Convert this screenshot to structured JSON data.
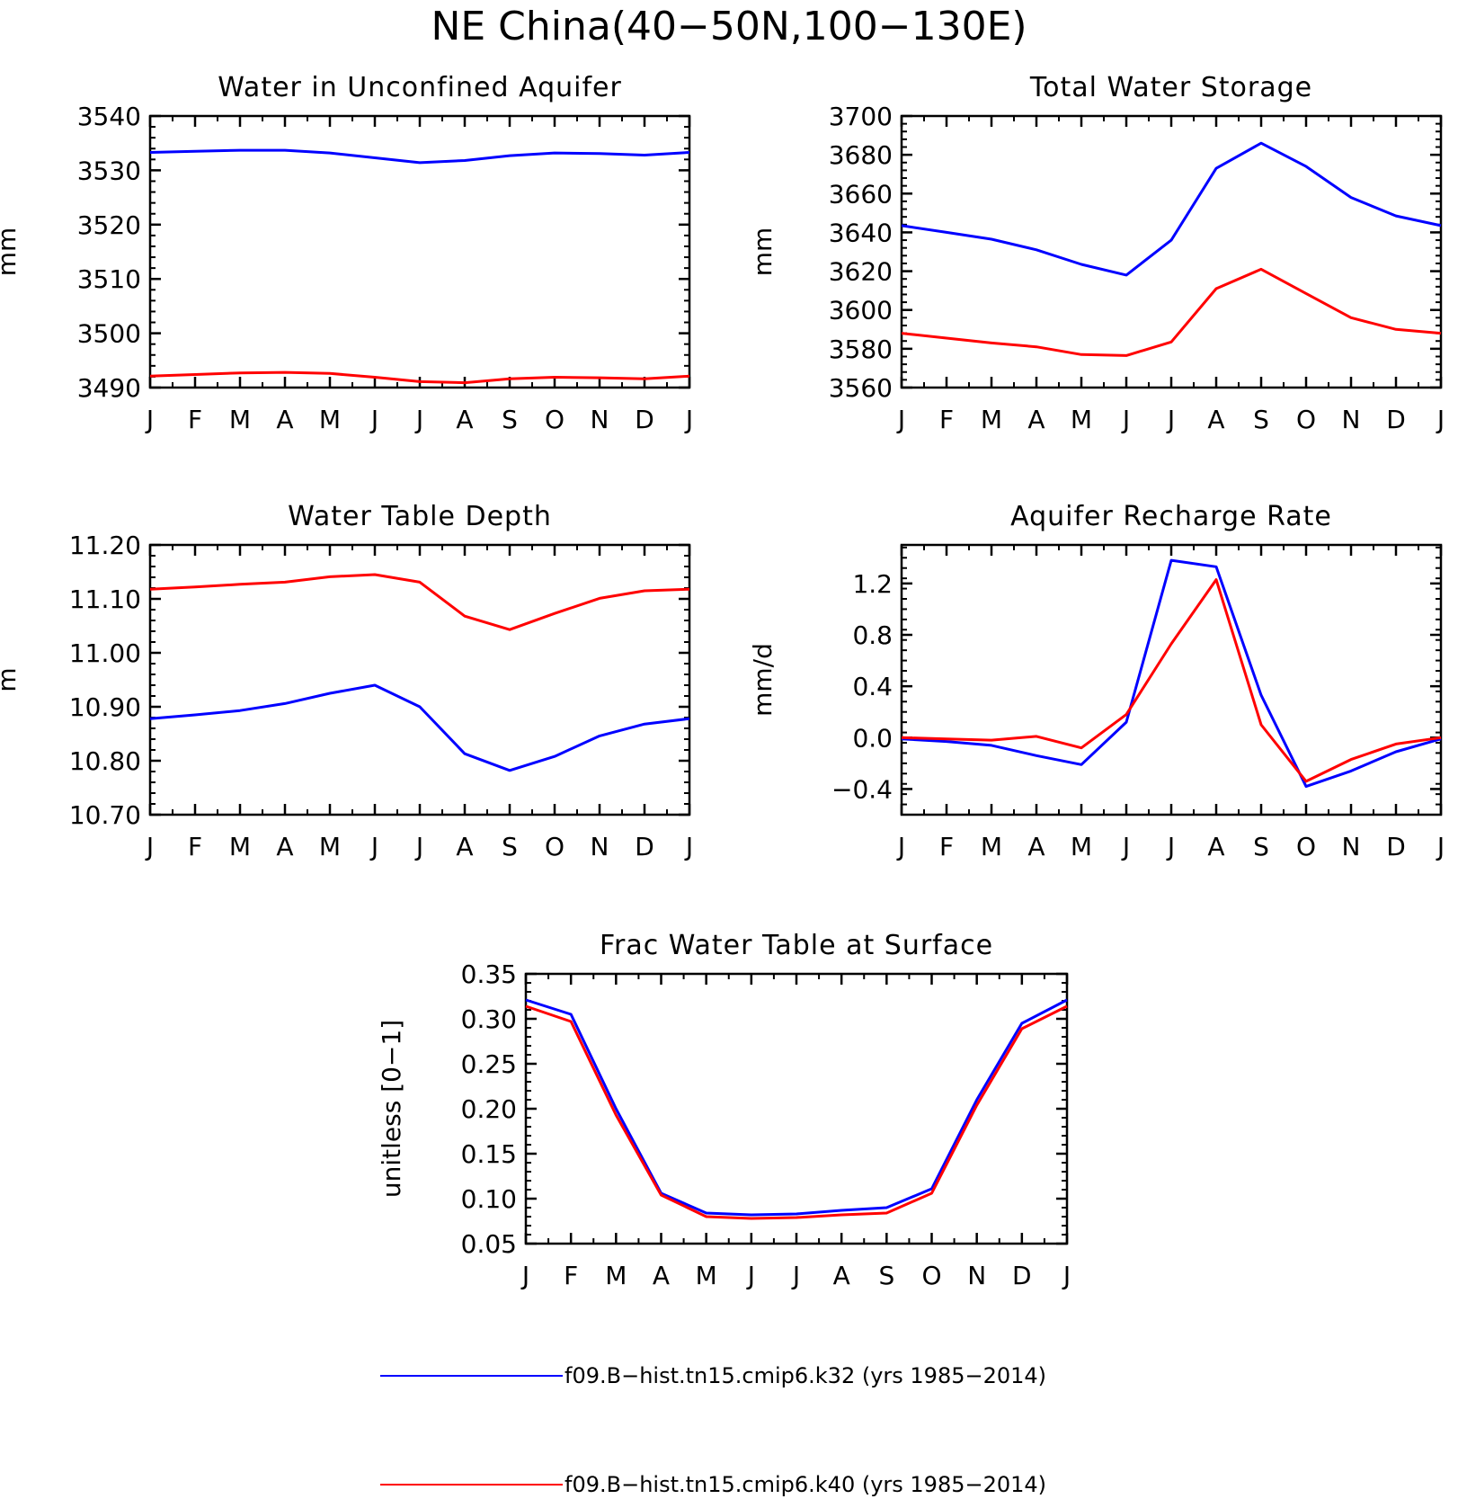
{
  "figure": {
    "title": "NE China(40−50N,100−130E)"
  },
  "colors": {
    "series_blue": "#0000ff",
    "series_red": "#ff0000",
    "axis": "#000000"
  },
  "legend": [
    {
      "label": "f09.B−hist.tn15.cmip6.k32 (yrs 1985−2014)",
      "color": "#0000ff"
    },
    {
      "label": "f09.B−hist.tn15.cmip6.k40 (yrs 1985−2014)",
      "color": "#ff0000"
    }
  ],
  "chart_data": [
    {
      "type": "line",
      "title": "Water in Unconfined Aquifer",
      "ylabel": "mm",
      "xlabel": "",
      "categories": [
        "J",
        "F",
        "M",
        "A",
        "M",
        "J",
        "J",
        "A",
        "S",
        "O",
        "N",
        "D",
        "J"
      ],
      "ylim": [
        3490,
        3540
      ],
      "yticks": [
        3490,
        3500,
        3510,
        3520,
        3530,
        3540
      ],
      "ytick_labels": [
        "3490",
        "3500",
        "3510",
        "3520",
        "3530",
        "3540"
      ],
      "series": [
        {
          "name": "f09.B−hist.tn15.cmip6.k32 (yrs 1985−2014)",
          "color": "#0000ff",
          "values": [
            3533.3,
            3533.5,
            3533.7,
            3533.7,
            3533.2,
            3532.3,
            3531.4,
            3531.8,
            3532.7,
            3533.2,
            3533.1,
            3532.8,
            3533.3
          ]
        },
        {
          "name": "f09.B−hist.tn15.cmip6.k40 (yrs 1985−2014)",
          "color": "#ff0000",
          "values": [
            3492.1,
            3492.4,
            3492.7,
            3492.8,
            3492.6,
            3491.9,
            3491.1,
            3490.9,
            3491.6,
            3491.9,
            3491.8,
            3491.6,
            3492.1
          ]
        }
      ]
    },
    {
      "type": "line",
      "title": "Total Water Storage",
      "ylabel": "mm",
      "xlabel": "",
      "categories": [
        "J",
        "F",
        "M",
        "A",
        "M",
        "J",
        "J",
        "A",
        "S",
        "O",
        "N",
        "D",
        "J"
      ],
      "ylim": [
        3560,
        3700
      ],
      "yticks": [
        3560,
        3580,
        3600,
        3620,
        3640,
        3660,
        3680,
        3700
      ],
      "ytick_labels": [
        "3560",
        "3580",
        "3600",
        "3620",
        "3640",
        "3660",
        "3680",
        "3700"
      ],
      "series": [
        {
          "name": "f09.B−hist.tn15.cmip6.k32 (yrs 1985−2014)",
          "color": "#0000ff",
          "values": [
            3643.5,
            3640.0,
            3636.5,
            3631.0,
            3623.5,
            3618.0,
            3636.0,
            3673.0,
            3686.0,
            3674.0,
            3658.0,
            3648.5,
            3643.5
          ]
        },
        {
          "name": "f09.B−hist.tn15.cmip6.k40 (yrs 1985−2014)",
          "color": "#ff0000",
          "values": [
            3588.0,
            3585.5,
            3583.0,
            3581.0,
            3577.0,
            3576.5,
            3583.5,
            3611.0,
            3621.0,
            3608.5,
            3596.0,
            3590.0,
            3588.0
          ]
        }
      ]
    },
    {
      "type": "line",
      "title": "Water Table Depth",
      "ylabel": "m",
      "xlabel": "",
      "categories": [
        "J",
        "F",
        "M",
        "A",
        "M",
        "J",
        "J",
        "A",
        "S",
        "O",
        "N",
        "D",
        "J"
      ],
      "ylim": [
        10.7,
        11.2
      ],
      "yticks": [
        10.7,
        10.8,
        10.9,
        11.0,
        11.1,
        11.2
      ],
      "ytick_labels": [
        "10.70",
        "10.80",
        "10.90",
        "11.00",
        "11.10",
        "11.20"
      ],
      "series": [
        {
          "name": "f09.B−hist.tn15.cmip6.k32 (yrs 1985−2014)",
          "color": "#0000ff",
          "values": [
            10.878,
            10.885,
            10.893,
            10.906,
            10.925,
            10.94,
            10.9,
            10.813,
            10.782,
            10.808,
            10.846,
            10.868,
            10.878
          ]
        },
        {
          "name": "f09.B−hist.tn15.cmip6.k40 (yrs 1985−2014)",
          "color": "#ff0000",
          "values": [
            11.118,
            11.122,
            11.127,
            11.131,
            11.141,
            11.145,
            11.131,
            11.068,
            11.043,
            11.073,
            11.101,
            11.115,
            11.118
          ]
        }
      ]
    },
    {
      "type": "line",
      "title": "Aquifer Recharge Rate",
      "ylabel": "mm/d",
      "xlabel": "",
      "categories": [
        "J",
        "F",
        "M",
        "A",
        "M",
        "J",
        "J",
        "A",
        "S",
        "O",
        "N",
        "D",
        "J"
      ],
      "ylim": [
        -0.6,
        1.5
      ],
      "yticks": [
        -0.4,
        0.0,
        0.4,
        0.8,
        1.2
      ],
      "ytick_labels": [
        "−0.4",
        "0.0",
        "0.4",
        "0.8",
        "1.2"
      ],
      "series": [
        {
          "name": "f09.B−hist.tn15.cmip6.k32 (yrs 1985−2014)",
          "color": "#0000ff",
          "values": [
            -0.01,
            -0.03,
            -0.06,
            -0.14,
            -0.21,
            0.12,
            1.38,
            1.33,
            0.33,
            -0.38,
            -0.26,
            -0.11,
            -0.01
          ]
        },
        {
          "name": "f09.B−hist.tn15.cmip6.k40 (yrs 1985−2014)",
          "color": "#ff0000",
          "values": [
            0.0,
            -0.01,
            -0.02,
            0.01,
            -0.08,
            0.18,
            0.73,
            1.23,
            0.1,
            -0.34,
            -0.17,
            -0.05,
            0.0
          ]
        }
      ]
    },
    {
      "type": "line",
      "title": "Frac Water Table at Surface",
      "ylabel": "unitless [0−1]",
      "xlabel": "",
      "categories": [
        "J",
        "F",
        "M",
        "A",
        "M",
        "J",
        "J",
        "A",
        "S",
        "O",
        "N",
        "D",
        "J"
      ],
      "ylim": [
        0.05,
        0.35
      ],
      "yticks": [
        0.05,
        0.1,
        0.15,
        0.2,
        0.25,
        0.3,
        0.35
      ],
      "ytick_labels": [
        "0.05",
        "0.10",
        "0.15",
        "0.20",
        "0.25",
        "0.30",
        "0.35"
      ],
      "series": [
        {
          "name": "f09.B−hist.tn15.cmip6.k32 (yrs 1985−2014)",
          "color": "#0000ff",
          "values": [
            0.321,
            0.305,
            0.2,
            0.106,
            0.084,
            0.082,
            0.083,
            0.087,
            0.09,
            0.111,
            0.21,
            0.295,
            0.321
          ]
        },
        {
          "name": "f09.B−hist.tn15.cmip6.k40 (yrs 1985−2014)",
          "color": "#ff0000",
          "values": [
            0.314,
            0.297,
            0.193,
            0.104,
            0.08,
            0.078,
            0.079,
            0.082,
            0.084,
            0.106,
            0.204,
            0.289,
            0.314
          ]
        }
      ]
    }
  ]
}
